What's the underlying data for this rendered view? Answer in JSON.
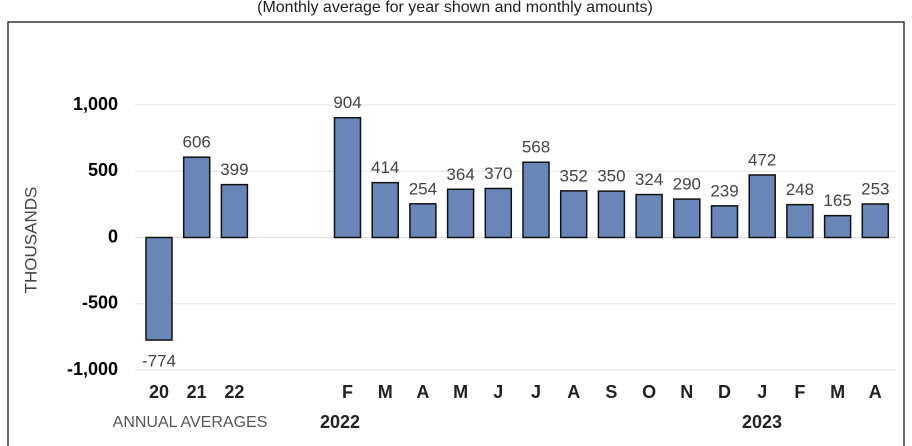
{
  "chart_data": {
    "type": "bar",
    "subtitle": "(Monthly average for year shown and monthly amounts)",
    "y_label": "THOUSANDS",
    "categories": [
      "20",
      "21",
      "22",
      null,
      null,
      "F",
      "M",
      "A",
      "M",
      "J",
      "J",
      "A",
      "S",
      "O",
      "N",
      "D",
      "J",
      "F",
      "M",
      "A"
    ],
    "values": [
      -774,
      606,
      399,
      null,
      null,
      904,
      414,
      254,
      364,
      370,
      568,
      352,
      350,
      324,
      290,
      239,
      472,
      248,
      165,
      253
    ],
    "color": "#6a86b8",
    "groups": [
      "ANNUAL AVERAGES",
      "2022",
      "2023"
    ],
    "ylim": [
      -1000,
      1000
    ],
    "yticks": [
      {
        "value": -1000,
        "label": "-1,000"
      },
      -500,
      0,
      500,
      {
        "value": 1000,
        "label": "1,000"
      }
    ],
    "grid": true
  }
}
